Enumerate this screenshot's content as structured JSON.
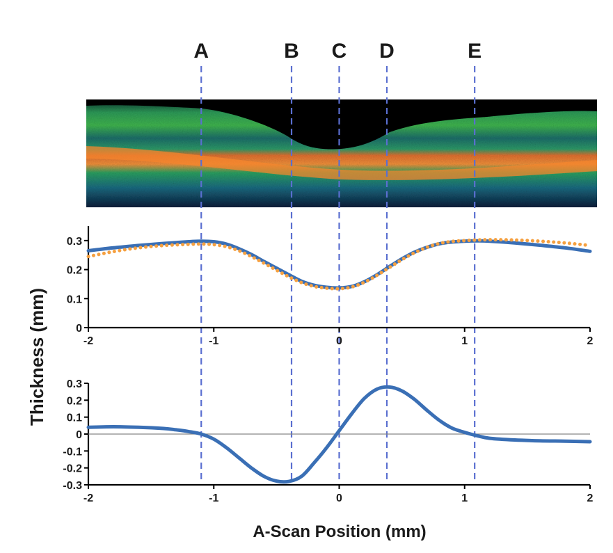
{
  "chart_data": {
    "markers": [
      {
        "label": "A",
        "x": -1.1
      },
      {
        "label": "B",
        "x": -0.38
      },
      {
        "label": "C",
        "x": 0.0
      },
      {
        "label": "D",
        "x": 0.38
      },
      {
        "label": "E",
        "x": 1.08
      }
    ],
    "ylabel": "Thickness (mm)",
    "xlabel": "A-Scan Position (mm)",
    "image_panel": {
      "type": "oct-b-scan",
      "xlim": [
        -2,
        2
      ]
    },
    "plots": [
      {
        "type": "line",
        "xlim": [
          -2,
          2
        ],
        "ylim": [
          0,
          0.35
        ],
        "x_ticks": [
          -2,
          -1,
          0,
          1,
          2
        ],
        "y_ticks": [
          0,
          0.1,
          0.2,
          0.3
        ],
        "x_tick_labels": [
          "-2",
          "-1",
          "0",
          "1",
          "2"
        ],
        "y_tick_labels": [
          "0",
          "0.1",
          "0.2",
          "0.3"
        ],
        "series": [
          {
            "style": "solid",
            "color": "#3a6fb5",
            "x": [
              -2.0,
              -1.8,
              -1.6,
              -1.4,
              -1.2,
              -1.1,
              -1.0,
              -0.9,
              -0.8,
              -0.7,
              -0.6,
              -0.5,
              -0.4,
              -0.3,
              -0.2,
              -0.1,
              0.0,
              0.1,
              0.2,
              0.3,
              0.4,
              0.5,
              0.6,
              0.7,
              0.8,
              0.9,
              1.0,
              1.1,
              1.2,
              1.4,
              1.6,
              1.8,
              2.0
            ],
            "y": [
              0.265,
              0.275,
              0.283,
              0.29,
              0.296,
              0.298,
              0.296,
              0.288,
              0.272,
              0.252,
              0.228,
              0.205,
              0.182,
              0.16,
              0.146,
              0.139,
              0.137,
              0.142,
              0.158,
              0.182,
              0.21,
              0.237,
              0.26,
              0.277,
              0.289,
              0.295,
              0.298,
              0.299,
              0.298,
              0.292,
              0.284,
              0.275,
              0.263
            ]
          },
          {
            "style": "dotted",
            "color": "#f5a040",
            "x": [
              -2.0,
              -1.8,
              -1.6,
              -1.4,
              -1.2,
              -1.1,
              -1.0,
              -0.9,
              -0.8,
              -0.7,
              -0.6,
              -0.5,
              -0.4,
              -0.3,
              -0.2,
              -0.1,
              0.0,
              0.1,
              0.2,
              0.3,
              0.4,
              0.5,
              0.6,
              0.7,
              0.8,
              0.9,
              1.0,
              1.1,
              1.2,
              1.4,
              1.6,
              1.8,
              2.0
            ],
            "y": [
              0.245,
              0.262,
              0.275,
              0.283,
              0.287,
              0.288,
              0.286,
              0.279,
              0.265,
              0.245,
              0.222,
              0.198,
              0.175,
              0.155,
              0.142,
              0.136,
              0.134,
              0.14,
              0.156,
              0.18,
              0.207,
              0.234,
              0.258,
              0.277,
              0.29,
              0.297,
              0.3,
              0.302,
              0.303,
              0.302,
              0.298,
              0.292,
              0.283
            ]
          }
        ]
      },
      {
        "type": "line",
        "xlim": [
          -2,
          2
        ],
        "ylim": [
          -0.3,
          0.3
        ],
        "x_ticks": [
          -2,
          -1,
          0,
          1,
          2
        ],
        "y_ticks": [
          -0.3,
          -0.2,
          -0.1,
          0,
          0.1,
          0.2,
          0.3
        ],
        "x_tick_labels": [
          "-2",
          "-1",
          "0",
          "1",
          "2"
        ],
        "y_tick_labels": [
          "-0.3",
          "-0.2",
          "-0.1",
          "0",
          "0.1",
          "0.2",
          "0.3"
        ],
        "zero_line": true,
        "series": [
          {
            "style": "solid",
            "color": "#3a6fb5",
            "x": [
              -2.0,
              -1.8,
              -1.6,
              -1.4,
              -1.3,
              -1.2,
              -1.1,
              -1.0,
              -0.9,
              -0.8,
              -0.7,
              -0.6,
              -0.5,
              -0.4,
              -0.3,
              -0.2,
              -0.1,
              0.0,
              0.1,
              0.2,
              0.3,
              0.4,
              0.5,
              0.6,
              0.7,
              0.8,
              0.9,
              1.0,
              1.1,
              1.2,
              1.4,
              1.6,
              1.8,
              2.0
            ],
            "y": [
              0.04,
              0.043,
              0.04,
              0.033,
              0.025,
              0.015,
              0.0,
              -0.03,
              -0.08,
              -0.14,
              -0.2,
              -0.25,
              -0.278,
              -0.28,
              -0.25,
              -0.17,
              -0.08,
              0.02,
              0.12,
              0.21,
              0.265,
              0.278,
              0.255,
              0.205,
              0.14,
              0.08,
              0.035,
              0.01,
              -0.01,
              -0.025,
              -0.035,
              -0.04,
              -0.042,
              -0.045
            ]
          }
        ]
      }
    ]
  }
}
